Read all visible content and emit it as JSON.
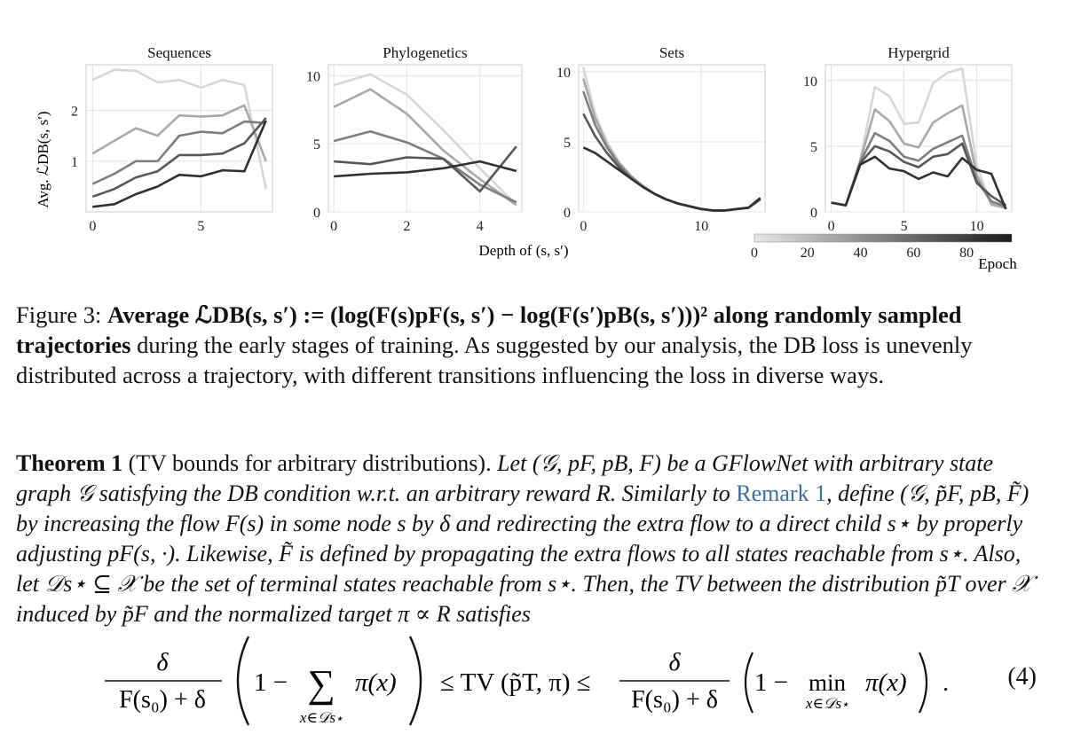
{
  "figure": {
    "x_axis_label": "Depth of (s, s′)",
    "y_axis_label": "Avg. ℒDB(s, s′)",
    "colorbar": {
      "label": "Epoch",
      "ticks": [
        "0",
        "20",
        "40",
        "60",
        "80"
      ],
      "from_color": "#e6e6e6",
      "to_color": "#1a1a1a"
    }
  },
  "chart_data": [
    {
      "type": "line",
      "title": "Sequences",
      "x": [
        0,
        1,
        2,
        3,
        4,
        5,
        6,
        7,
        8
      ],
      "xticks": [
        "0",
        "5"
      ],
      "yticks": [
        "1",
        "2"
      ],
      "ylim": [
        0,
        2.9
      ],
      "xlim": [
        -0.3,
        8.3
      ],
      "series": [
        {
          "values": [
            2.6,
            2.8,
            2.78,
            2.55,
            2.6,
            2.45,
            2.6,
            2.5,
            0.45
          ],
          "color": "#d6d6d6"
        },
        {
          "values": [
            1.15,
            1.4,
            1.65,
            1.5,
            1.9,
            1.88,
            1.9,
            2.1,
            1.0
          ],
          "color": "#a8a8a8"
        },
        {
          "values": [
            0.55,
            0.75,
            1.0,
            1.0,
            1.5,
            1.58,
            1.55,
            1.78,
            1.75
          ],
          "color": "#7e7e7e"
        },
        {
          "values": [
            0.3,
            0.45,
            0.68,
            0.8,
            1.12,
            1.12,
            1.15,
            1.35,
            1.85
          ],
          "color": "#575757"
        },
        {
          "values": [
            0.1,
            0.15,
            0.35,
            0.5,
            0.73,
            0.7,
            0.82,
            0.8,
            1.8
          ],
          "color": "#303030"
        }
      ]
    },
    {
      "type": "line",
      "title": "Phylogenetics",
      "x": [
        0,
        1,
        2,
        3,
        4,
        5
      ],
      "xticks": [
        "0",
        "2",
        "4"
      ],
      "yticks": [
        "0",
        "5",
        "10"
      ],
      "ylim": [
        0,
        10.8
      ],
      "xlim": [
        -0.15,
        5.15
      ],
      "series": [
        {
          "values": [
            9.3,
            10.1,
            8.6,
            6.0,
            3.2,
            0.5
          ],
          "color": "#d6d6d6"
        },
        {
          "values": [
            7.7,
            9.0,
            7.2,
            4.5,
            2.4,
            0.5
          ],
          "color": "#a8a8a8"
        },
        {
          "values": [
            5.2,
            5.9,
            5.1,
            3.9,
            2.0,
            0.7
          ],
          "color": "#7e7e7e"
        },
        {
          "values": [
            3.7,
            3.5,
            4.0,
            3.9,
            1.5,
            4.8
          ],
          "color": "#575757"
        },
        {
          "values": [
            2.6,
            2.8,
            2.9,
            3.2,
            3.7,
            3.0
          ],
          "color": "#303030"
        }
      ]
    },
    {
      "type": "line",
      "title": "Sets",
      "x": [
        0,
        1,
        2,
        3,
        4,
        5,
        6,
        7,
        8,
        9,
        10,
        11,
        12,
        13,
        14,
        15
      ],
      "xticks": [
        "0",
        "10"
      ],
      "yticks": [
        "0",
        "5",
        "10"
      ],
      "ylim": [
        0,
        10.5
      ],
      "xlim": [
        -0.4,
        15.4
      ],
      "series": [
        {
          "values": [
            10.3,
            7.0,
            5.0,
            3.6,
            2.6,
            1.9,
            1.3,
            0.9,
            0.6,
            0.4,
            0.2,
            0.1,
            0.1,
            0.2,
            0.3,
            0.9
          ],
          "color": "#d6d6d6"
        },
        {
          "values": [
            9.5,
            6.7,
            4.8,
            3.5,
            2.6,
            1.9,
            1.3,
            0.9,
            0.6,
            0.4,
            0.2,
            0.1,
            0.1,
            0.2,
            0.3,
            0.9
          ],
          "color": "#a8a8a8"
        },
        {
          "values": [
            8.6,
            6.2,
            4.6,
            3.4,
            2.5,
            1.8,
            1.3,
            0.9,
            0.6,
            0.4,
            0.2,
            0.1,
            0.1,
            0.2,
            0.3,
            0.9
          ],
          "color": "#7e7e7e"
        },
        {
          "values": [
            7.0,
            5.4,
            4.2,
            3.2,
            2.4,
            1.8,
            1.3,
            0.9,
            0.6,
            0.4,
            0.2,
            0.1,
            0.1,
            0.2,
            0.3,
            0.9
          ],
          "color": "#575757"
        },
        {
          "values": [
            4.6,
            4.2,
            3.6,
            3.0,
            2.4,
            1.8,
            1.3,
            0.9,
            0.6,
            0.4,
            0.2,
            0.1,
            0.1,
            0.2,
            0.3,
            1.0
          ],
          "color": "#303030"
        }
      ]
    },
    {
      "type": "line",
      "title": "Hypergrid",
      "x": [
        0,
        1,
        2,
        3,
        4,
        5,
        6,
        7,
        8,
        9,
        10,
        11,
        12
      ],
      "xticks": [
        "0",
        "5",
        "10"
      ],
      "yticks": [
        "0",
        "5",
        "10"
      ],
      "ylim": [
        0,
        11.2
      ],
      "xlim": [
        -0.4,
        12.4
      ],
      "series": [
        {
          "values": [
            0.7,
            0.5,
            4.0,
            9.5,
            8.8,
            6.7,
            6.8,
            9.8,
            10.6,
            10.9,
            3.5,
            0.5,
            0.3
          ],
          "color": "#d6d6d6"
        },
        {
          "values": [
            0.7,
            0.5,
            3.9,
            7.8,
            6.9,
            5.2,
            4.9,
            6.8,
            7.5,
            8.1,
            2.8,
            0.6,
            0.3
          ],
          "color": "#a8a8a8"
        },
        {
          "values": [
            0.7,
            0.5,
            3.8,
            6.0,
            5.4,
            4.2,
            3.9,
            4.8,
            5.3,
            5.8,
            2.4,
            0.8,
            0.4
          ],
          "color": "#7e7e7e"
        },
        {
          "values": [
            0.7,
            0.5,
            3.7,
            5.0,
            4.6,
            3.8,
            3.4,
            4.2,
            4.4,
            5.2,
            2.2,
            1.2,
            0.5
          ],
          "color": "#575757"
        },
        {
          "values": [
            0.7,
            0.5,
            3.6,
            4.2,
            3.3,
            3.1,
            2.5,
            3.0,
            2.7,
            4.1,
            3.2,
            2.9,
            0.2
          ],
          "color": "#303030"
        }
      ]
    }
  ],
  "caption": {
    "label": "Figure 3:",
    "bold_title": "Average ℒDB(s, s′) := (log(F(s)pF(s, s′) − log(F(s′)pB(s, s′)))² along randomly sampled trajectories",
    "text": "during the early stages of training. As suggested by our analysis, the DB loss is unevenly distributed across a trajectory, with different transitions influencing the loss in diverse ways."
  },
  "theorem": {
    "label": "Theorem 1",
    "title": "(TV bounds for arbitrary distributions).",
    "body_1": "Let (𝒢, pF, pB, F) be a GFlowNet with arbitrary state graph 𝒢 satisfying the DB condition w.r.t. an arbitrary reward R. Similarly to",
    "link": "Remark 1",
    "body_2": ", define (𝒢, p̃F, pB, F̃) by increasing the flow F(s) in some node s by δ and redirecting the extra flow to a direct child s⋆ by properly adjusting pF(s, ·). Likewise, F̃ is defined by propagating the extra flows to all states reachable from s⋆. Also, let 𝒟s⋆ ⊆ 𝒳 be the set of terminal states reachable from s⋆. Then, the TV between the distribution p̃T over 𝒳 induced by p̃F and the normalized target π ∝ R satisfies"
  },
  "equation": {
    "frac_num": "δ",
    "frac_den": "F(s₀) + δ",
    "left_bracket": "1 −",
    "sum": "∑",
    "sum_sub": "x∈𝒟s⋆",
    "pi": "π(x)",
    "middle": "≤ TV (p̃T, π) ≤",
    "min": "min",
    "min_sub": "x∈𝒟s⋆",
    "end": ".",
    "number": "(4)"
  }
}
